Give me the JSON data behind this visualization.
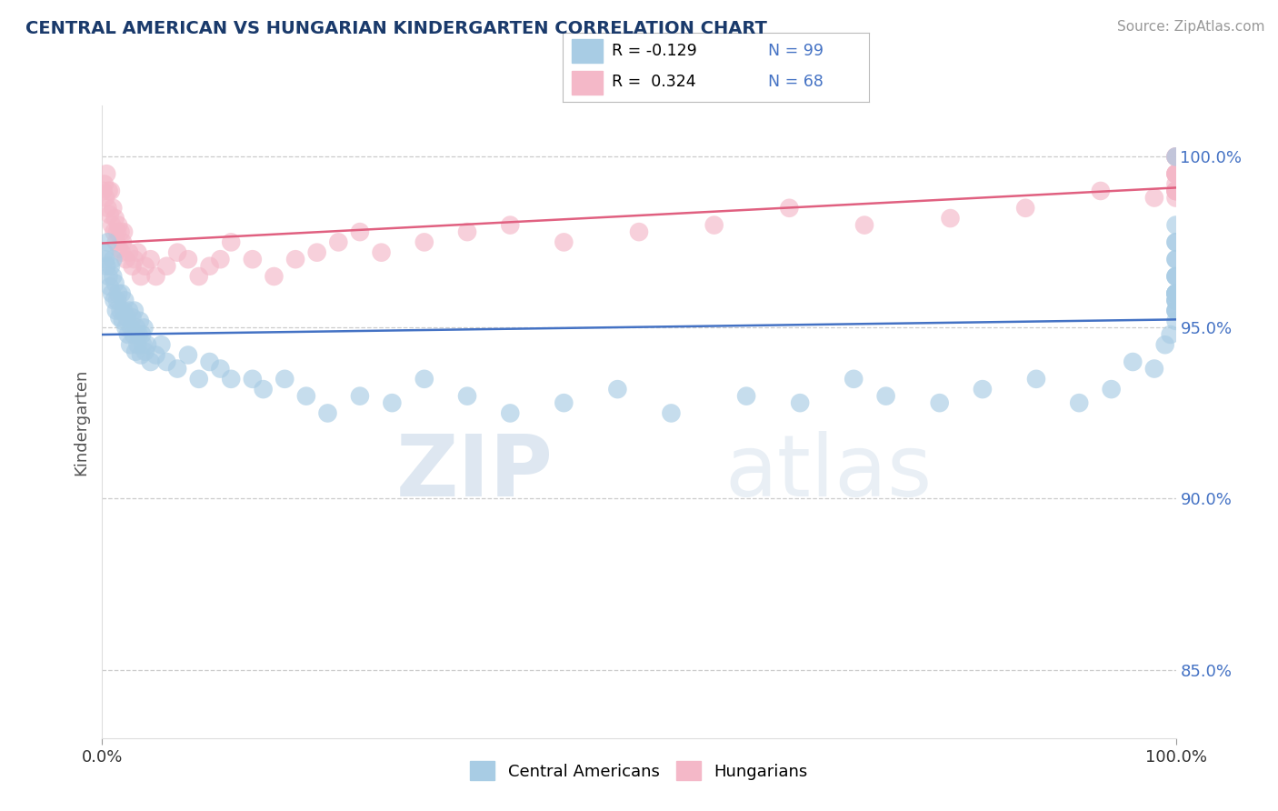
{
  "title": "CENTRAL AMERICAN VS HUNGARIAN KINDERGARTEN CORRELATION CHART",
  "source": "Source: ZipAtlas.com",
  "ylabel": "Kindergarten",
  "xlim": [
    0,
    100
  ],
  "ylim": [
    83,
    101.5
  ],
  "yticks_right": [
    85,
    90,
    95,
    100
  ],
  "ytick_labels_right": [
    "85.0%",
    "90.0%",
    "95.0%",
    "100.0%"
  ],
  "watermark_zip": "ZIP",
  "watermark_atlas": "atlas",
  "legend_r1": "R = -0.129",
  "legend_n1": "N = 99",
  "legend_r2": "R =  0.324",
  "legend_n2": "N = 68",
  "color_blue": "#a8cce4",
  "color_pink": "#f4b8c8",
  "color_blue_line": "#4472c4",
  "color_pink_line": "#e06080",
  "background_color": "#ffffff",
  "grid_color": "#cccccc",
  "blue_x": [
    0.2,
    0.3,
    0.4,
    0.5,
    0.6,
    0.7,
    0.8,
    0.9,
    1.0,
    1.0,
    1.1,
    1.2,
    1.3,
    1.4,
    1.5,
    1.6,
    1.7,
    1.8,
    1.9,
    2.0,
    2.1,
    2.2,
    2.3,
    2.4,
    2.5,
    2.6,
    2.7,
    2.8,
    2.9,
    3.0,
    3.1,
    3.2,
    3.3,
    3.4,
    3.5,
    3.6,
    3.7,
    3.8,
    3.9,
    4.0,
    4.2,
    4.5,
    5.0,
    5.5,
    6.0,
    7.0,
    8.0,
    9.0,
    10.0,
    11.0,
    12.0,
    14.0,
    15.0,
    17.0,
    19.0,
    21.0,
    24.0,
    27.0,
    30.0,
    34.0,
    38.0,
    43.0,
    48.0,
    53.0,
    60.0,
    65.0,
    70.0,
    73.0,
    78.0,
    82.0,
    87.0,
    91.0,
    94.0,
    96.0,
    98.0,
    99.0,
    99.5,
    100.0,
    100.0,
    100.0,
    100.0,
    100.0,
    100.0,
    100.0,
    100.0,
    100.0,
    100.0,
    100.0,
    100.0,
    100.0,
    100.0,
    100.0,
    100.0,
    100.0,
    100.0,
    100.0,
    100.0,
    100.0,
    100.0
  ],
  "blue_y": [
    97.2,
    97.0,
    96.8,
    97.5,
    96.5,
    96.2,
    96.8,
    96.0,
    97.0,
    96.5,
    95.8,
    96.3,
    95.5,
    95.8,
    96.0,
    95.3,
    95.5,
    96.0,
    95.2,
    95.5,
    95.8,
    95.0,
    95.3,
    94.8,
    95.5,
    94.5,
    95.0,
    95.3,
    94.8,
    95.5,
    94.3,
    95.0,
    94.5,
    94.8,
    95.2,
    94.2,
    94.8,
    94.5,
    95.0,
    94.3,
    94.5,
    94.0,
    94.2,
    94.5,
    94.0,
    93.8,
    94.2,
    93.5,
    94.0,
    93.8,
    93.5,
    93.5,
    93.2,
    93.5,
    93.0,
    92.5,
    93.0,
    92.8,
    93.5,
    93.0,
    92.5,
    92.8,
    93.2,
    92.5,
    93.0,
    92.8,
    93.5,
    93.0,
    92.8,
    93.2,
    93.5,
    92.8,
    93.2,
    94.0,
    93.8,
    94.5,
    94.8,
    95.2,
    95.5,
    96.0,
    96.5,
    95.8,
    96.0,
    95.5,
    96.0,
    95.5,
    95.8,
    96.0,
    95.8,
    96.0,
    96.5,
    96.0,
    96.5,
    97.0,
    97.0,
    97.5,
    97.5,
    98.0,
    100.0
  ],
  "pink_x": [
    0.1,
    0.2,
    0.3,
    0.4,
    0.5,
    0.6,
    0.7,
    0.8,
    0.9,
    1.0,
    1.1,
    1.2,
    1.3,
    1.4,
    1.5,
    1.6,
    1.7,
    1.8,
    1.9,
    2.0,
    2.2,
    2.5,
    2.8,
    3.0,
    3.3,
    3.6,
    4.0,
    4.5,
    5.0,
    6.0,
    7.0,
    8.0,
    9.0,
    10.0,
    11.0,
    12.0,
    14.0,
    16.0,
    18.0,
    20.0,
    22.0,
    24.0,
    26.0,
    30.0,
    34.0,
    38.0,
    43.0,
    50.0,
    57.0,
    64.0,
    71.0,
    79.0,
    86.0,
    93.0,
    98.0,
    100.0,
    100.0,
    100.0,
    100.0,
    100.0,
    100.0,
    100.0,
    100.0,
    100.0,
    100.0,
    100.0,
    100.0,
    100.0
  ],
  "pink_y": [
    99.0,
    99.2,
    98.8,
    99.5,
    98.5,
    99.0,
    98.3,
    99.0,
    98.0,
    98.5,
    97.8,
    98.2,
    97.5,
    97.8,
    98.0,
    97.3,
    97.8,
    97.2,
    97.5,
    97.8,
    97.0,
    97.2,
    96.8,
    97.0,
    97.2,
    96.5,
    96.8,
    97.0,
    96.5,
    96.8,
    97.2,
    97.0,
    96.5,
    96.8,
    97.0,
    97.5,
    97.0,
    96.5,
    97.0,
    97.2,
    97.5,
    97.8,
    97.2,
    97.5,
    97.8,
    98.0,
    97.5,
    97.8,
    98.0,
    98.5,
    98.0,
    98.2,
    98.5,
    99.0,
    98.8,
    99.0,
    99.2,
    99.5,
    98.8,
    99.0,
    99.5,
    100.0,
    99.0,
    99.5,
    100.0,
    99.0,
    99.5,
    100.0
  ]
}
